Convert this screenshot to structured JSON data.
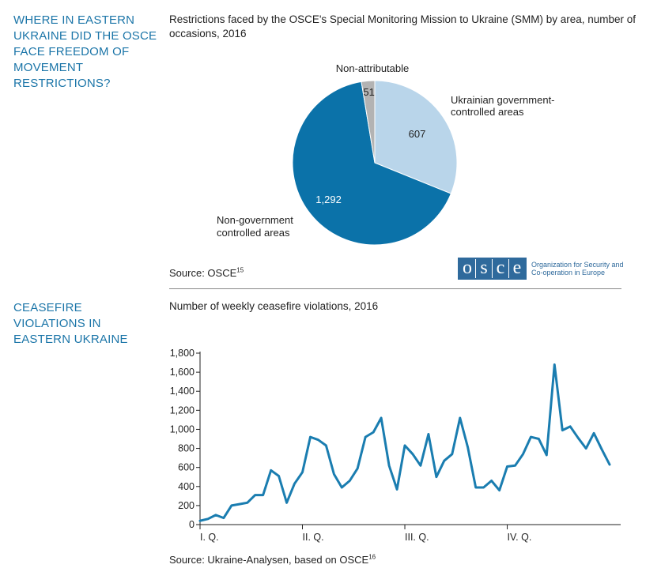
{
  "section1": {
    "heading": "WHERE IN EASTERN UKRAINE DID THE OSCE FACE FREEDOM OF MOVEMENT RESTRICTIONS?",
    "title": "Restrictions faced by the OSCE's Special Monitoring Mission to Ukraine (SMM) by area, number of occasions, 2016",
    "source": "Source: OSCE",
    "source_ref": "15",
    "logo": {
      "letters": [
        "o",
        "s",
        "c",
        "e"
      ],
      "text": "Organization for Security and Co-operation in Europe",
      "color": "#2f6a9c"
    }
  },
  "section2": {
    "heading": "CEASEFIRE VIOLATIONS IN EASTERN UKRAINE",
    "title": "Number of weekly ceasefire violations, 2016",
    "source": "Source: Ukraine-Analysen, based on OSCE",
    "source_ref": "16"
  },
  "chart_data": [
    {
      "type": "pie",
      "slices": [
        {
          "label": "Ukrainian government-controlled areas",
          "value": 607,
          "value_label": "607",
          "color": "#b9d5ea"
        },
        {
          "label": "Non-government controlled areas",
          "value": 1292,
          "value_label": "1,292",
          "color": "#0b72a9"
        },
        {
          "label": "Non-attributable",
          "value": 51,
          "value_label": "51",
          "color": "#b3b3b3"
        }
      ],
      "labels": {
        "gov_line1": "Ukrainian government-",
        "gov_line2": "controlled areas",
        "nongov_line1": "Non-government",
        "nongov_line2": "controlled areas",
        "nonattr": "Non-attributable"
      }
    },
    {
      "type": "line",
      "ylim": [
        0,
        1800
      ],
      "yticks": [
        0,
        200,
        400,
        600,
        800,
        1000,
        1200,
        1400,
        1600,
        1800
      ],
      "ytick_labels": [
        "0",
        "200",
        "400",
        "600",
        "800",
        "1,000",
        "1,200",
        "1,400",
        "1,600",
        "1,800"
      ],
      "xticks": [
        {
          "label": "I. Q.",
          "week": 1
        },
        {
          "label": "II. Q.",
          "week": 14
        },
        {
          "label": "III. Q.",
          "week": 27
        },
        {
          "label": "IV. Q.",
          "week": 40
        }
      ],
      "xlim": [
        1,
        54
      ],
      "grid": false,
      "color": "#1a7db0",
      "series": [
        {
          "values": [
            40,
            60,
            100,
            70,
            200,
            215,
            230,
            310,
            310,
            570,
            510,
            230,
            430,
            550,
            920,
            890,
            830,
            530,
            390,
            460,
            590,
            920,
            970,
            1120,
            620,
            370,
            830,
            740,
            620,
            950,
            500,
            670,
            740,
            1120,
            810,
            390,
            390,
            460,
            360,
            610,
            620,
            740,
            920,
            900,
            730,
            1680,
            990,
            1030,
            910,
            800,
            960,
            790,
            630
          ]
        }
      ]
    }
  ]
}
